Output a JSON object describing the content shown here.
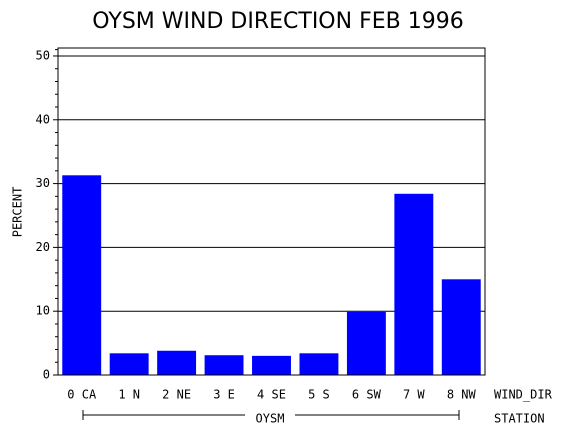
{
  "chart_data": {
    "type": "bar",
    "title": "OYSM WIND DIRECTION FEB 1996",
    "y_label": "PERCENT",
    "x_label": "WIND_DIR",
    "group_label": "STATION",
    "group": "OYSM",
    "categories": [
      "0 CA",
      "1 N",
      "2 NE",
      "3 E",
      "4 SE",
      "5 S",
      "6 SW",
      "7 W",
      "8 NW"
    ],
    "values": [
      31.3,
      3.4,
      3.8,
      3.1,
      3.0,
      3.4,
      9.9,
      28.4,
      15.0
    ],
    "color": "#0000ff",
    "ylim": [
      0,
      51.25
    ],
    "yticks": [
      0,
      10,
      20,
      30,
      40,
      50
    ],
    "yminorticks": [
      2,
      4,
      6,
      8,
      12,
      14,
      16,
      18,
      22,
      24,
      26,
      28,
      32,
      34,
      36,
      38,
      42,
      44,
      46,
      48,
      51
    ],
    "grid": true
  }
}
